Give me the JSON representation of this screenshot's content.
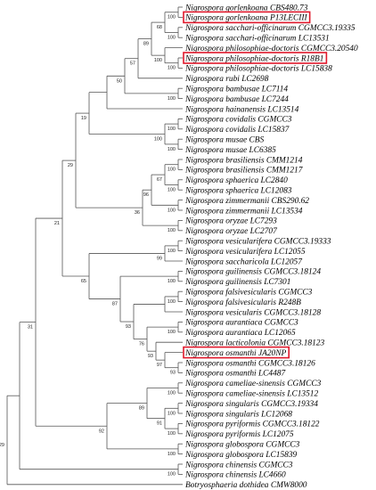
{
  "leaves": [
    "Nigrospora gorlenkoana CBS480.73",
    "Nigrospora gorlenkoana P13LECIII",
    "Nigrospora sacchari-officinarum CGMCC3.19335",
    "Nigrospora sacchari-officinarum LC13531",
    "Nigrospora philosophiae-doctoris CGMCC3.20540",
    "Nigrospora philosophiae-doctoris R18B1",
    "Nigrospora philosophiae-doctoris LC15838",
    "Nigrospora rubi LC2698",
    "Nigrospora bambusae LC7114",
    "Nigrospora bambusae LC7244",
    "Nigrospora hainanensis LC13514",
    "Nigrospora covidalis CGMCC3",
    "Nigrospora covidalis LC15837",
    "Nigrospora musae CBS",
    "Nigrospora musae LC6385",
    "Nigrospora brasiliensis CMM1214",
    "Nigrospora brasiliensis CMM1217",
    "Nigrospora sphaerica LC2840",
    "Nigrospora sphaerica LC12083",
    "Nigrospora zimmermanii CBS290.62",
    "Nigrospora zimmermanii LC13534",
    "Nigrospora oryzae LC7293",
    "Nigrospora oryzae LC2707",
    "Nigrospora vesicularifera CGMCC3.19333",
    "Nigrospora vesicularifera LC12055",
    "Nigrospora saccharicola LC12057",
    "Nigrospora guilinensis CGMCC3.18124",
    "Nigrospora guilinensis LC7301",
    "Nigrospora falsivesicularis CGMCC3",
    "Nigrospora falsivesicularis R248B",
    "Nigrospora vesicularis CGMCC3.18128",
    "Nigrospora aurantiaca CGMCC3",
    "Nigrospora aurantiaca LC12065",
    "Nigrospora lacticolonia CGMCC3.18123",
    "Nigrospora osmanthi JA20NP",
    "Nigrospora osmanthi CGMCC3.18126",
    "Nigrospora osmanthi LC4487",
    "Nigrospora cameliae-sinensis CGMCC3",
    "Nigrospora cameliae-sinensis LC13512",
    "Nigrospora singularis CGMCC3.19334",
    "Nigrospora singularis LC12068",
    "Nigrospora pyriformis CGMCC3.18122",
    "Nigrospora pyriformis LC12075",
    "Nigrospora globospora CGMCC3",
    "Nigrospora globospora LC15839",
    "Nigrospora chinensis CGMCC3",
    "Nigrospora chinensis LC4660",
    "Botryosphaeria dothidea CMW8000"
  ],
  "support": [
    100,
    100,
    68,
    100,
    100,
    89,
    57,
    100,
    50,
    100,
    100,
    100,
    19,
    100,
    100,
    67,
    100,
    96,
    100,
    36,
    29,
    100,
    99,
    100,
    100,
    100,
    93,
    97,
    93,
    76,
    93,
    87,
    65,
    21,
    100,
    100,
    100,
    91,
    89,
    100,
    92,
    100,
    31,
    29
  ]
}
